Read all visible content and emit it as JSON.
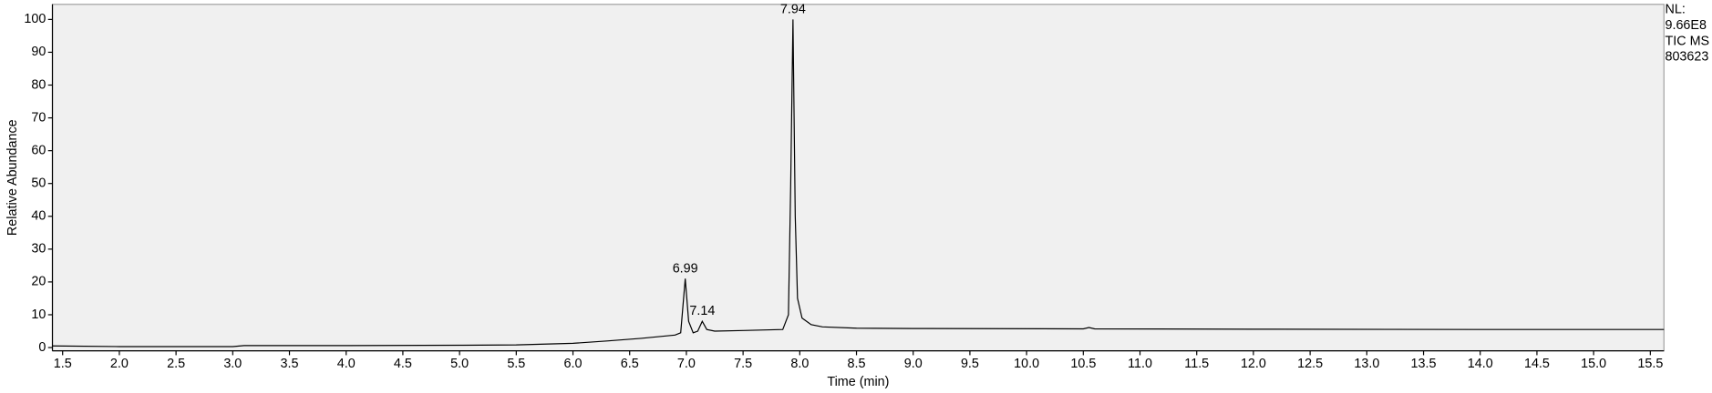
{
  "chart_data": {
    "type": "line",
    "ylabel": "Relative Abundance",
    "xlabel": "Time (min)",
    "info": [
      "NL:",
      "9.66E8",
      "TIC  MS",
      "803623"
    ],
    "xlim": [
      1.41,
      15.62
    ],
    "ylim": [
      -1,
      104.6
    ],
    "xticks": [
      1.5,
      {
        "value": 2,
        "label": "2.0"
      },
      2.5,
      {
        "value": 3,
        "label": "3.0"
      },
      3.5,
      {
        "value": 4,
        "label": "4.0"
      },
      4.5,
      {
        "value": 5,
        "label": "5.0"
      },
      5.5,
      {
        "value": 6,
        "label": "6.0"
      },
      6.5,
      {
        "value": 7,
        "label": "7.0"
      },
      7.5,
      {
        "value": 8,
        "label": "8.0"
      },
      8.5,
      {
        "value": 9,
        "label": "9.0"
      },
      9.5,
      {
        "value": 10,
        "label": "10.0"
      },
      10.5,
      {
        "value": 11,
        "label": "11.0"
      },
      11.5,
      {
        "value": 12,
        "label": "12.0"
      },
      12.5,
      {
        "value": 13,
        "label": "13.0"
      },
      13.5,
      {
        "value": 14,
        "label": "14.0"
      },
      14.5,
      {
        "value": 15,
        "label": "15.0"
      },
      15.5
    ],
    "yticks": [
      0,
      10,
      20,
      30,
      40,
      50,
      60,
      70,
      80,
      90,
      100
    ],
    "peak_labels": [
      6.99,
      7.14,
      7.94
    ],
    "series": [
      {
        "color": "#000000",
        "x": [
          1.41,
          2.0,
          3.0,
          3.1,
          4.0,
          5.0,
          5.5,
          6.0,
          6.3,
          6.6,
          6.9,
          6.95,
          6.99,
          7.02,
          7.06,
          7.1,
          7.14,
          7.18,
          7.25,
          7.5,
          7.85,
          7.9,
          7.92,
          7.94,
          7.96,
          7.98,
          8.02,
          8.1,
          8.2,
          8.5,
          9.0,
          10.5,
          10.55,
          10.6,
          12.0,
          14.0,
          15.62
        ],
        "values": [
          0.5,
          0.3,
          0.3,
          0.6,
          0.6,
          0.7,
          0.8,
          1.3,
          2.0,
          2.8,
          3.8,
          4.5,
          21,
          8,
          4.5,
          5,
          8,
          5.5,
          5.0,
          5.2,
          5.5,
          10,
          50,
          100,
          40,
          15,
          9,
          7,
          6.3,
          5.9,
          5.8,
          5.7,
          6.1,
          5.7,
          5.6,
          5.5,
          5.5
        ]
      }
    ]
  }
}
